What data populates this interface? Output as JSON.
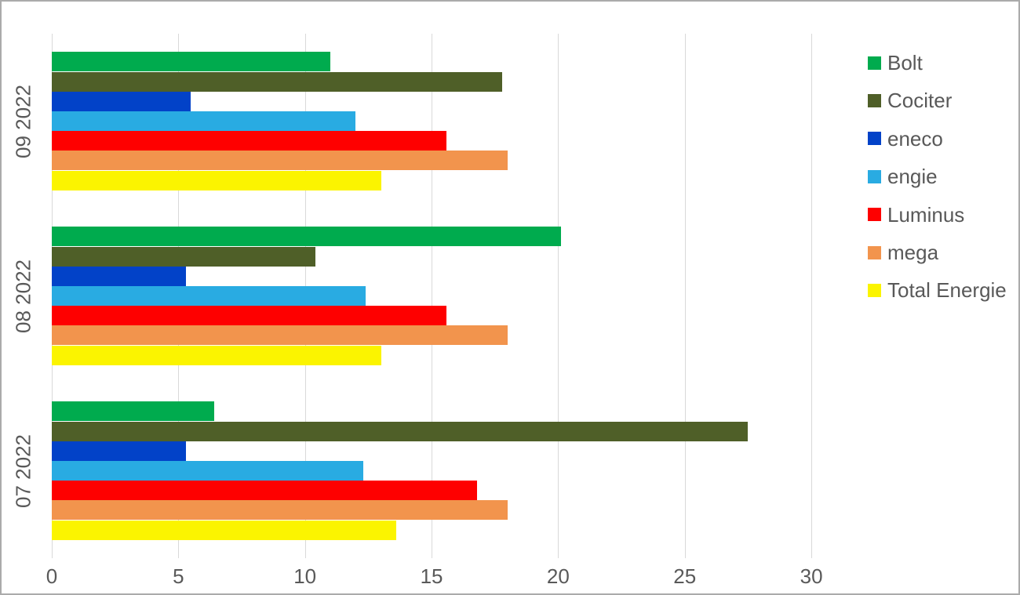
{
  "chart_data": {
    "type": "bar",
    "orientation": "horizontal",
    "title": "",
    "xlabel": "",
    "ylabel": "",
    "categories": [
      "09 2022",
      "08 2022",
      "07 2022"
    ],
    "series": [
      {
        "name": "Bolt",
        "color": "#00AB4E",
        "values": [
          11.0,
          20.1,
          6.4
        ]
      },
      {
        "name": "Cociter",
        "color": "#4F5F28",
        "values": [
          17.8,
          10.4,
          27.5
        ]
      },
      {
        "name": "eneco",
        "color": "#0242C8",
        "values": [
          5.5,
          5.3,
          5.3
        ]
      },
      {
        "name": "engie",
        "color": "#29ABE2",
        "values": [
          12.0,
          12.4,
          12.3
        ]
      },
      {
        "name": "Luminus",
        "color": "#FE0000",
        "values": [
          15.6,
          15.6,
          16.8
        ]
      },
      {
        "name": "mega",
        "color": "#F2944D",
        "values": [
          18.0,
          18.0,
          18.0
        ]
      },
      {
        "name": "Total Energie",
        "color": "#FBF400",
        "values": [
          13.0,
          13.0,
          13.6
        ]
      }
    ],
    "x_axis": {
      "min": 0,
      "max": 30,
      "ticks": [
        0,
        5,
        10,
        15,
        20,
        25,
        30
      ]
    },
    "gridlines": "vertical",
    "legend_position": "right"
  },
  "colors": {
    "grid": "#D9D9D9",
    "axis_text": "#595959",
    "background": "#FFFFFF",
    "frame_border": "#ABABAB"
  }
}
